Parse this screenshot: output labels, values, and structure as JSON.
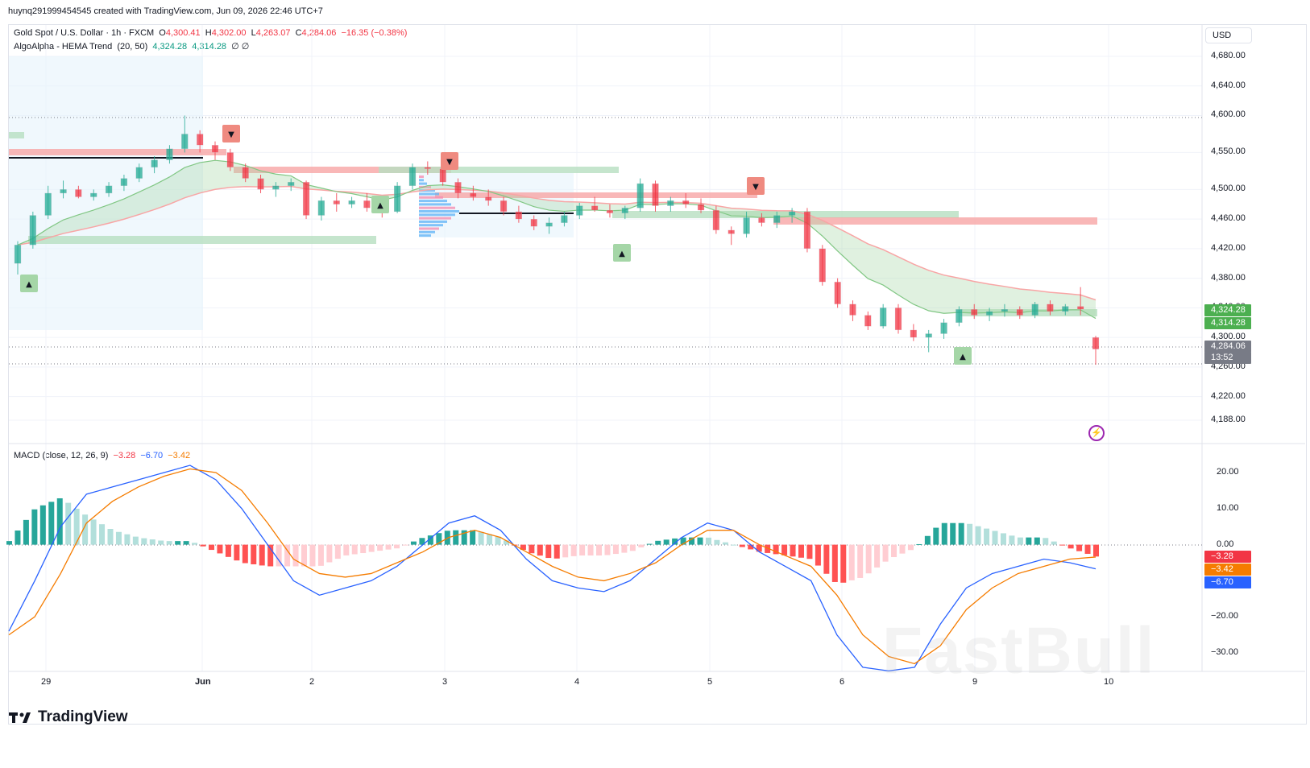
{
  "credit": "huynq291999454545 created with TradingView.com, Jun 09, 2026 22:46 UTC+7",
  "legend": {
    "symbol": "Gold Spot / U.S. Dollar · 1h · FXCM",
    "o_label": "O",
    "o": "4,300.41",
    "h_label": "H",
    "h": "4,302.00",
    "l_label": "L",
    "l": "4,263.07",
    "c_label": "C",
    "c": "4,284.06",
    "change": "−16.35 (−0.38%)",
    "indicator": "AlgoAlpha - HEMA Trend",
    "indicator_params": "(20, 50)",
    "ind_v1": "4,324.28",
    "ind_v2": "4,314.28",
    "ind_null": "∅ ∅",
    "macd": "MACD (close, 12, 26, 9)",
    "macd_hist": "−3.28",
    "macd_line": "−6.70",
    "macd_signal": "−3.42"
  },
  "currency_button": "USD",
  "price_axis": [
    "4,680.00",
    "4,640.00",
    "4,600.00",
    "4,550.00",
    "4,500.00",
    "4,460.00",
    "4,420.00",
    "4,380.00",
    "4,340.00",
    "4,300.00",
    "4,260.00",
    "4,220.00",
    "4,188.00"
  ],
  "macd_axis": [
    "20.00",
    "10.00",
    "0.00",
    "−20.00",
    "−30.00"
  ],
  "badges": {
    "hema_fast": "4,324.28",
    "hema_slow": "4,314.28",
    "last_price": "4,284.06",
    "countdown": "13:52",
    "macd_hist": "−3.28",
    "macd_signal": "−3.42",
    "macd_line": "−6.70"
  },
  "time_axis": [
    "29",
    "Jun",
    "2",
    "3",
    "4",
    "5",
    "6",
    "9",
    "10"
  ],
  "logo": "TradingView",
  "watermark": "FastBull",
  "colors": {
    "up": "#22ab94",
    "down": "#f23645",
    "macd_line": "#2962ff",
    "signal_line": "#f57c00",
    "hema_fast": "#4caf50",
    "hema_slow": "#4caf50"
  },
  "chart_data": {
    "type": "candlestick",
    "symbol": "Gold Spot / U.S. Dollar",
    "interval": "1h",
    "ylim": [
      4188,
      4690
    ],
    "candles": [
      [
        4400,
        4430,
        4385,
        4425
      ],
      [
        4425,
        4470,
        4420,
        4465
      ],
      [
        4465,
        4505,
        4460,
        4495
      ],
      [
        4495,
        4512,
        4488,
        4500
      ],
      [
        4500,
        4505,
        4488,
        4490
      ],
      [
        4490,
        4500,
        4485,
        4495
      ],
      [
        4495,
        4510,
        4490,
        4505
      ],
      [
        4505,
        4520,
        4498,
        4515
      ],
      [
        4515,
        4535,
        4510,
        4530
      ],
      [
        4530,
        4545,
        4522,
        4540
      ],
      [
        4540,
        4560,
        4535,
        4555
      ],
      [
        4555,
        4600,
        4550,
        4575
      ],
      [
        4575,
        4580,
        4550,
        4560
      ],
      [
        4560,
        4565,
        4540,
        4550
      ],
      [
        4550,
        4555,
        4525,
        4530
      ],
      [
        4530,
        4535,
        4510,
        4515
      ],
      [
        4515,
        4520,
        4495,
        4500
      ],
      [
        4500,
        4510,
        4490,
        4505
      ],
      [
        4505,
        4515,
        4498,
        4510
      ],
      [
        4510,
        4512,
        4460,
        4465
      ],
      [
        4465,
        4490,
        4458,
        4485
      ],
      [
        4485,
        4495,
        4470,
        4480
      ],
      [
        4480,
        4490,
        4475,
        4485
      ],
      [
        4485,
        4495,
        4470,
        4475
      ],
      [
        4475,
        4485,
        4462,
        4470
      ],
      [
        4470,
        4510,
        4468,
        4505
      ],
      [
        4505,
        4535,
        4500,
        4530
      ],
      [
        4530,
        4538,
        4520,
        4528
      ],
      [
        4528,
        4532,
        4505,
        4510
      ],
      [
        4510,
        4515,
        4488,
        4495
      ],
      [
        4495,
        4505,
        4485,
        4490
      ],
      [
        4490,
        4500,
        4478,
        4485
      ],
      [
        4485,
        4490,
        4465,
        4470
      ],
      [
        4470,
        4478,
        4455,
        4460
      ],
      [
        4460,
        4465,
        4445,
        4450
      ],
      [
        4450,
        4462,
        4440,
        4455
      ],
      [
        4455,
        4470,
        4450,
        4465
      ],
      [
        4465,
        4482,
        4460,
        4478
      ],
      [
        4478,
        4490,
        4470,
        4472
      ],
      [
        4472,
        4480,
        4462,
        4468
      ],
      [
        4468,
        4478,
        4460,
        4475
      ],
      [
        4475,
        4515,
        4470,
        4508
      ],
      [
        4508,
        4512,
        4470,
        4478
      ],
      [
        4478,
        4490,
        4470,
        4485
      ],
      [
        4485,
        4495,
        4475,
        4480
      ],
      [
        4480,
        4488,
        4468,
        4472
      ],
      [
        4472,
        4478,
        4440,
        4445
      ],
      [
        4445,
        4450,
        4425,
        4440
      ],
      [
        4440,
        4470,
        4435,
        4462
      ],
      [
        4462,
        4468,
        4450,
        4455
      ],
      [
        4455,
        4470,
        4448,
        4465
      ],
      [
        4465,
        4475,
        4455,
        4470
      ],
      [
        4470,
        4475,
        4415,
        4420
      ],
      [
        4420,
        4425,
        4370,
        4375
      ],
      [
        4375,
        4380,
        4340,
        4345
      ],
      [
        4345,
        4350,
        4322,
        4330
      ],
      [
        4330,
        4335,
        4310,
        4315
      ],
      [
        4315,
        4345,
        4312,
        4340
      ],
      [
        4340,
        4345,
        4305,
        4310
      ],
      [
        4310,
        4318,
        4295,
        4300
      ],
      [
        4300,
        4310,
        4280,
        4305
      ],
      [
        4305,
        4325,
        4298,
        4320
      ],
      [
        4320,
        4342,
        4315,
        4338
      ],
      [
        4338,
        4345,
        4325,
        4330
      ],
      [
        4330,
        4340,
        4322,
        4335
      ],
      [
        4335,
        4345,
        4328,
        4338
      ],
      [
        4338,
        4342,
        4325,
        4330
      ],
      [
        4330,
        4348,
        4326,
        4345
      ],
      [
        4345,
        4350,
        4330,
        4335
      ],
      [
        4335,
        4345,
        4330,
        4342
      ],
      [
        4342,
        4368,
        4330,
        4338
      ],
      [
        4300,
        4302,
        4263,
        4284
      ]
    ],
    "hema_fast_last": 4324.28,
    "hema_slow_last": 4314.28,
    "last_close": 4284.06,
    "macd": {
      "params": [
        12,
        26,
        9
      ],
      "ylim": [
        -35,
        25
      ],
      "macd_line": [
        -24,
        -10,
        5,
        14,
        16,
        18,
        20,
        22,
        18,
        10,
        0,
        -10,
        -14,
        -12,
        -10,
        -6,
        0,
        6,
        8,
        4,
        -4,
        -10,
        -12,
        -13,
        -10,
        -4,
        2,
        6,
        4,
        -2,
        -6,
        -10,
        -25,
        -34,
        -35,
        -34,
        -22,
        -12,
        -8,
        -6,
        -4,
        -5,
        -6.7
      ],
      "signal_line": [
        -25,
        -20,
        -8,
        6,
        12,
        16,
        19,
        21,
        20,
        15,
        6,
        -4,
        -8,
        -9,
        -8,
        -5,
        -2,
        2,
        4,
        2,
        -2,
        -6,
        -9,
        -10,
        -8,
        -5,
        0,
        4,
        4,
        0,
        -3,
        -6,
        -14,
        -25,
        -31,
        -33,
        -28,
        -18,
        -12,
        -8,
        -6,
        -4,
        -3.42
      ],
      "histogram_last": -3.28
    }
  }
}
